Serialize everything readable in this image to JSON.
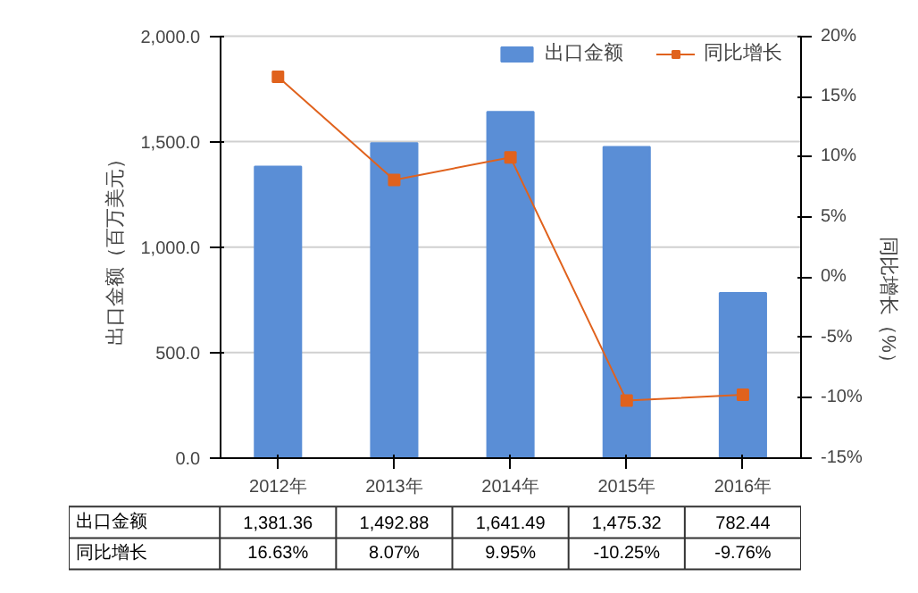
{
  "chart_data": {
    "type": "bar",
    "xlabel": null,
    "ylabel": "出口金额（百万美元）",
    "y2label": "同比增长（%）",
    "categories": [
      "2012年",
      "2013年",
      "2014年",
      "2015年",
      "2016年"
    ],
    "series": [
      {
        "name": "出口金额",
        "color": "#5a8ed6",
        "values": [
          1381.36,
          1492.88,
          1641.49,
          1475.32,
          782.44
        ],
        "value_labels": [
          "1,381.36",
          "1,492.88",
          "1,641.49",
          "1,475.32",
          "782.44"
        ]
      },
      {
        "name": "同比增长",
        "type": "line",
        "axis": "y2",
        "color": "#e0621d",
        "values": [
          16.63,
          8.07,
          9.95,
          -10.25,
          -9.76
        ],
        "value_labels": [
          "16.63%",
          "8.07%",
          "9.95%",
          "-10.25%",
          "-9.76%"
        ]
      }
    ],
    "ylim": [
      0,
      2000
    ],
    "yticks": [
      {
        "value": 0,
        "label": "0.0"
      },
      {
        "value": 500,
        "label": "500.0"
      },
      {
        "value": 1000,
        "label": "1,000.0"
      },
      {
        "value": 1500,
        "label": "1,500.0"
      },
      {
        "value": 2000,
        "label": "2,000.0"
      }
    ],
    "y2lim": [
      -15,
      20
    ],
    "y2ticks": [
      {
        "value": -15,
        "label": "-15%"
      },
      {
        "value": -10,
        "label": "-10%"
      },
      {
        "value": -5,
        "label": "-5%"
      },
      {
        "value": 0,
        "label": "0%"
      },
      {
        "value": 5,
        "label": "5%"
      },
      {
        "value": 10,
        "label": "10%"
      },
      {
        "value": 15,
        "label": "15%"
      },
      {
        "value": 20,
        "label": "20%"
      }
    ],
    "grid": "y",
    "legend": "top right",
    "marker": "square",
    "line_style": "solid"
  }
}
